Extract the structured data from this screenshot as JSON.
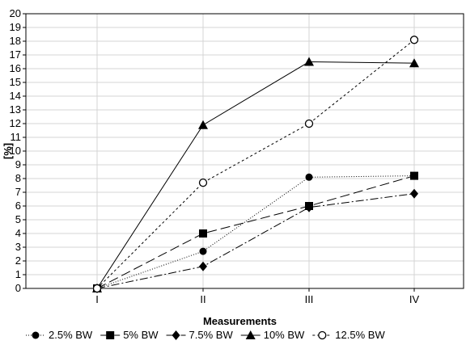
{
  "chart_data": {
    "type": "line",
    "title": "",
    "xlabel": "Measurements",
    "ylabel": "[%]",
    "categories": [
      "I",
      "II",
      "III",
      "IV"
    ],
    "ylim": [
      0,
      20
    ],
    "yticks": [
      0,
      1,
      2,
      3,
      4,
      5,
      6,
      7,
      8,
      9,
      10,
      11,
      12,
      13,
      14,
      15,
      16,
      17,
      18,
      19,
      20
    ],
    "grid": true,
    "legend_position": "bottom",
    "series": [
      {
        "name": "2.5% BW",
        "values": [
          0,
          2.7,
          8.1,
          8.2
        ],
        "marker": "circle-filled",
        "dash": "1,2"
      },
      {
        "name": "5% BW",
        "values": [
          0,
          4.0,
          6.0,
          8.2
        ],
        "marker": "square-filled",
        "dash": "12,5"
      },
      {
        "name": "7.5% BW",
        "values": [
          0,
          1.6,
          5.9,
          6.9
        ],
        "marker": "diamond-filled",
        "dash": "10,3,2,3"
      },
      {
        "name": "10% BW",
        "values": [
          0,
          11.9,
          16.5,
          16.4
        ],
        "marker": "triangle-filled",
        "dash": ""
      },
      {
        "name": "12.5% BW",
        "values": [
          0,
          7.7,
          12.0,
          18.1
        ],
        "marker": "circle-open",
        "dash": "3,3"
      }
    ]
  }
}
